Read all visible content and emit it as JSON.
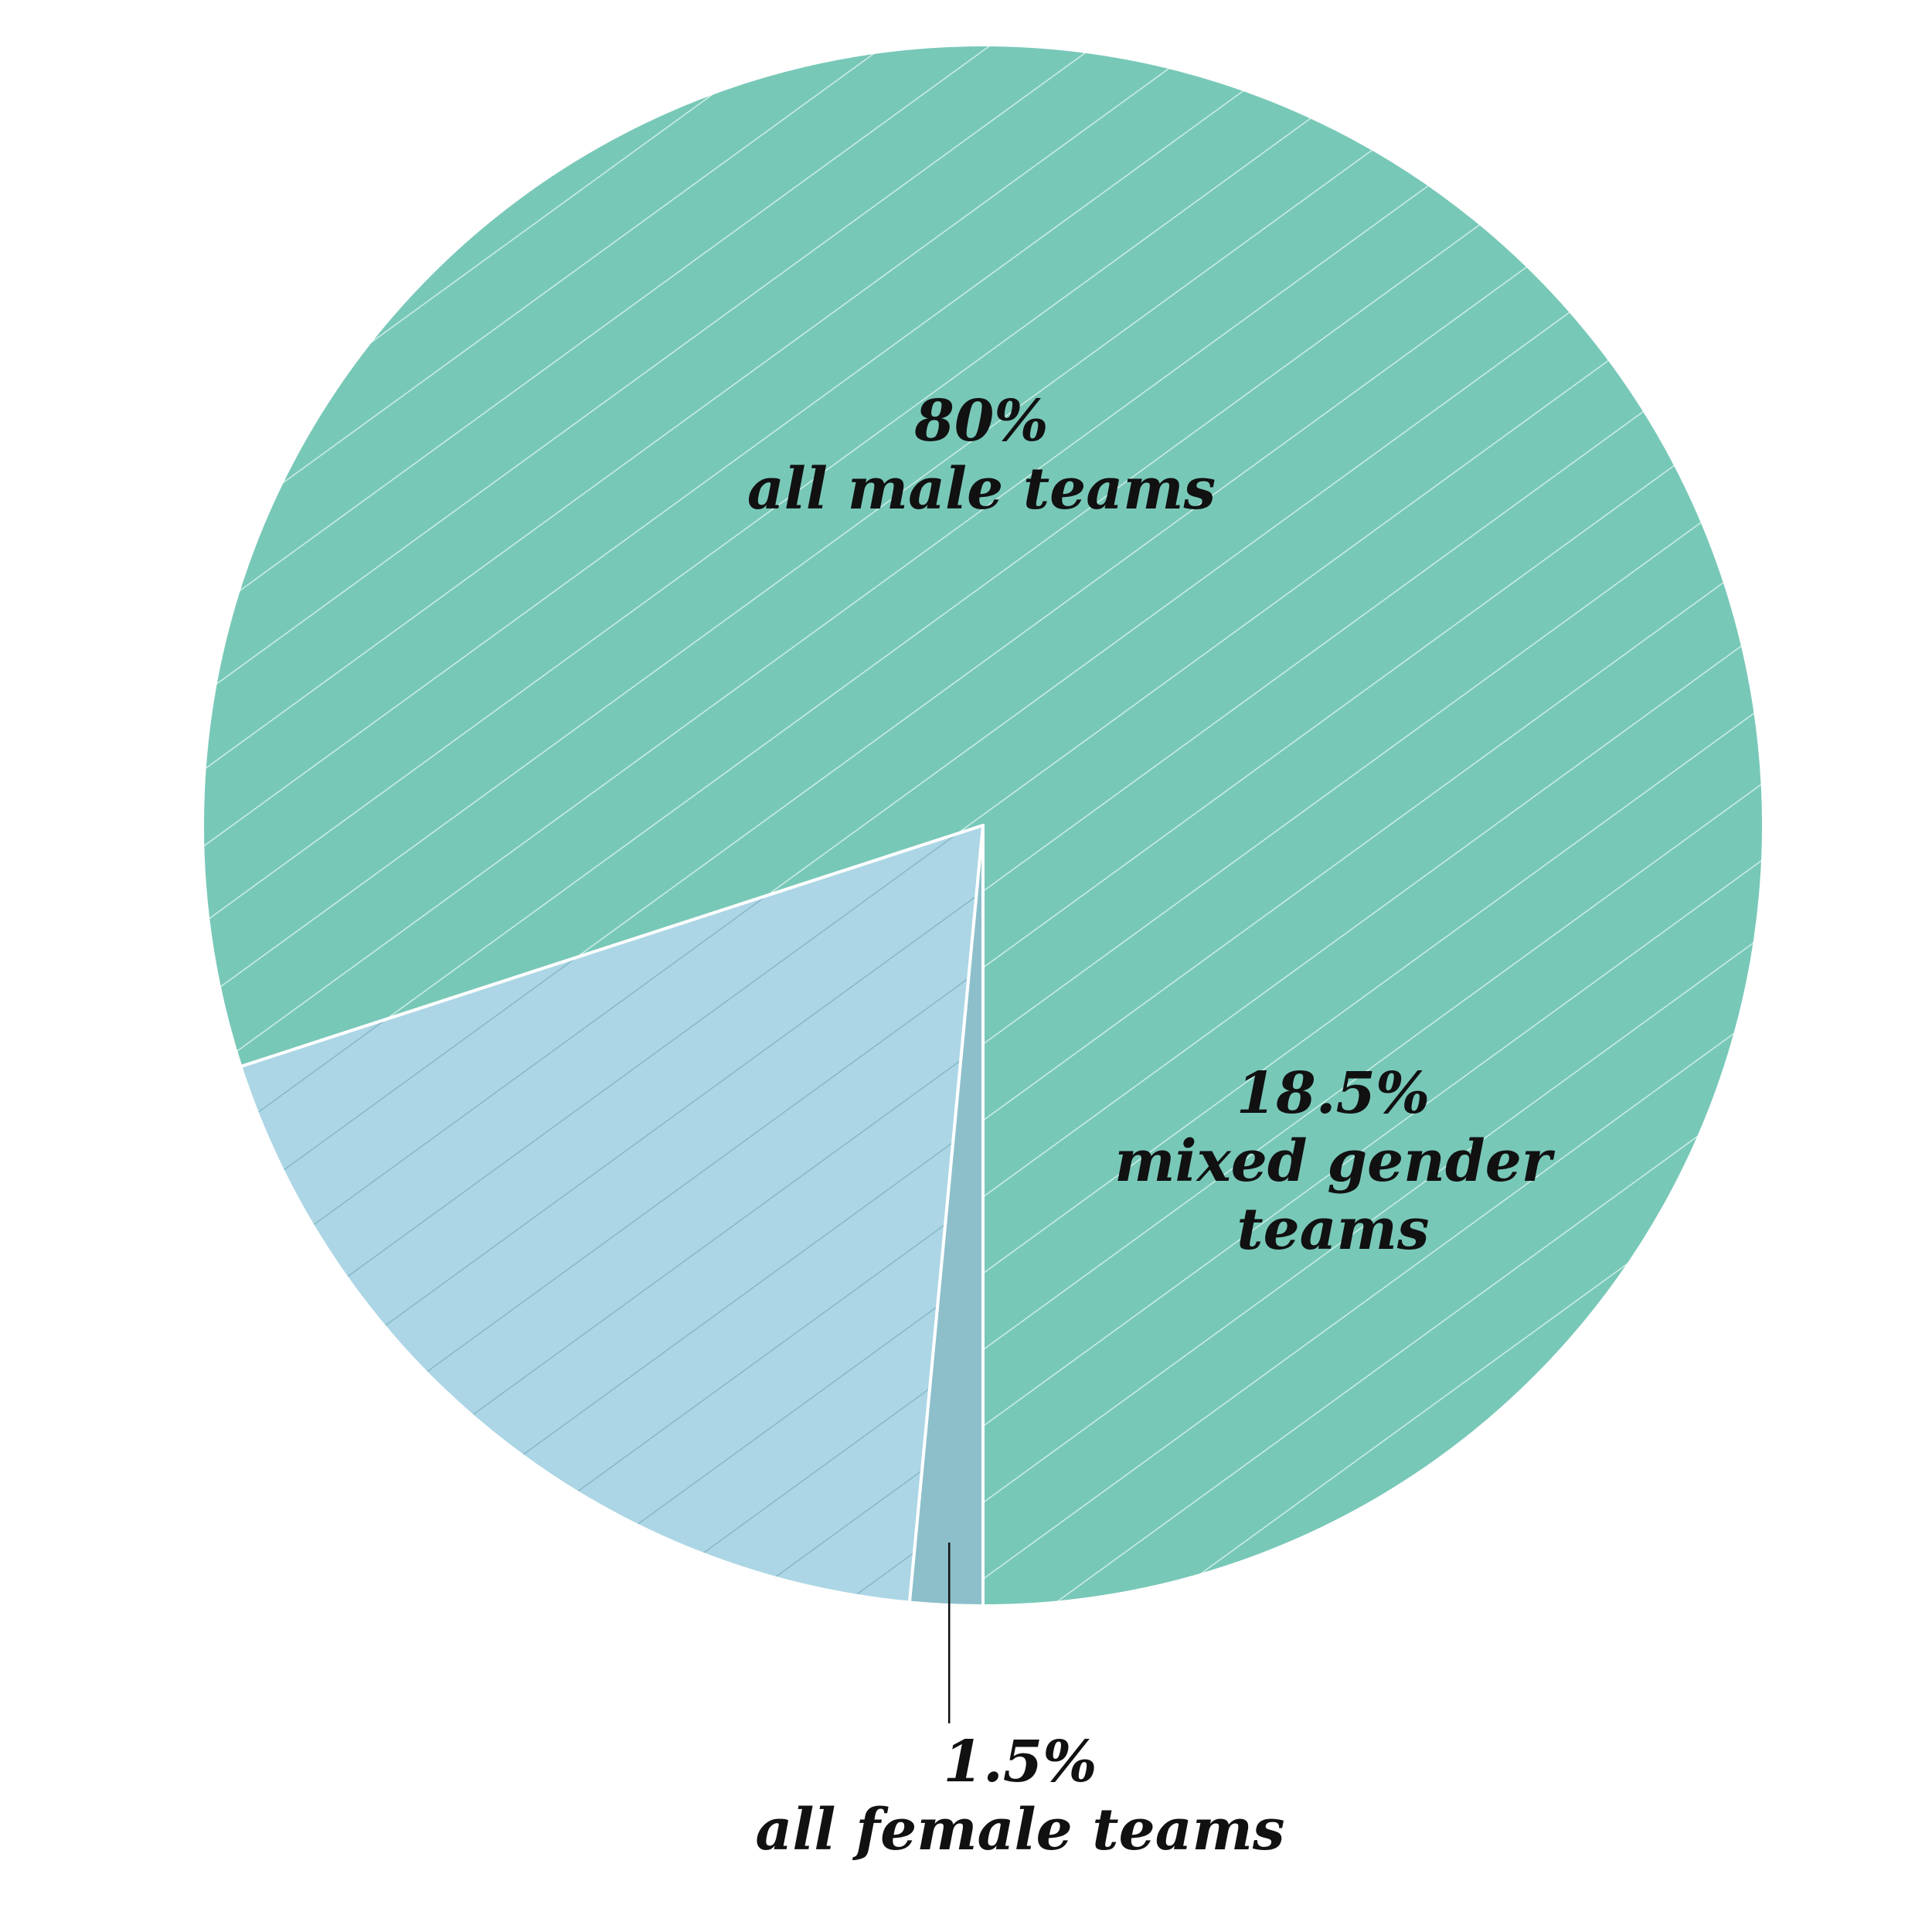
{
  "chart_data": {
    "type": "pie",
    "title": "",
    "slices": [
      {
        "name": "all male teams",
        "value": 80,
        "value_label": "80%",
        "label_lines": [
          "all male teams"
        ],
        "color": "#78c8b8",
        "hatch_color": "#cdeee6"
      },
      {
        "name": "mixed gender teams",
        "value": 18.5,
        "value_label": "18.5%",
        "label_lines": [
          "mixed gender",
          "teams"
        ],
        "color": "#acd6e5",
        "hatch_color": "#86b8c6"
      },
      {
        "name": "all female teams",
        "value": 1.5,
        "value_label": "1.5%",
        "label_lines": [
          "all female teams"
        ],
        "color": "#8cbfca",
        "hatch_color": "#8cbfca"
      }
    ],
    "start": "bottom",
    "direction": "counterclockwise",
    "legend": "none",
    "pattern": "diagonal hatch"
  }
}
